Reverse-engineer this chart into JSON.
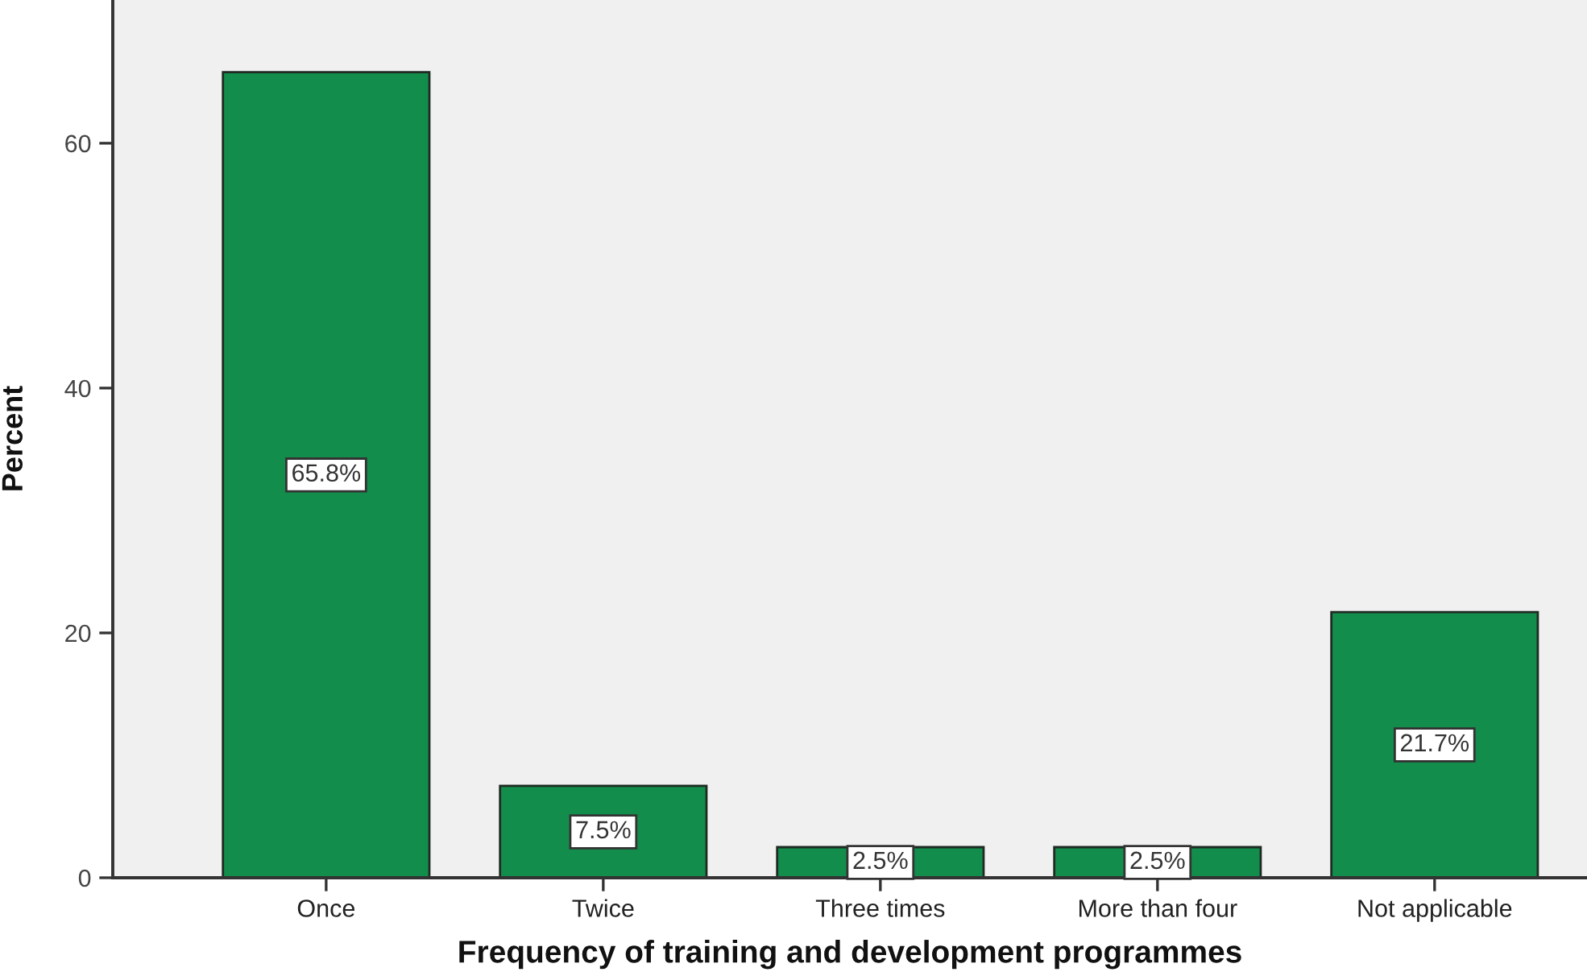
{
  "chart_data": {
    "type": "bar",
    "xlabel": "Frequency of training and development programmes",
    "ylabel": "Percent",
    "categories": [
      "Once",
      "Twice",
      "Three times",
      "More than four",
      "Not applicable"
    ],
    "values": [
      65.8,
      7.5,
      2.5,
      2.5,
      21.7
    ],
    "color": "#138d4b",
    "value_labels": [
      "65.8%",
      "7.5%",
      "2.5%",
      "2.5%",
      "21.7%"
    ],
    "ylim": [
      0,
      71.7
    ],
    "yticks": [
      0,
      20,
      40,
      60
    ],
    "grid": false,
    "legend": false
  }
}
